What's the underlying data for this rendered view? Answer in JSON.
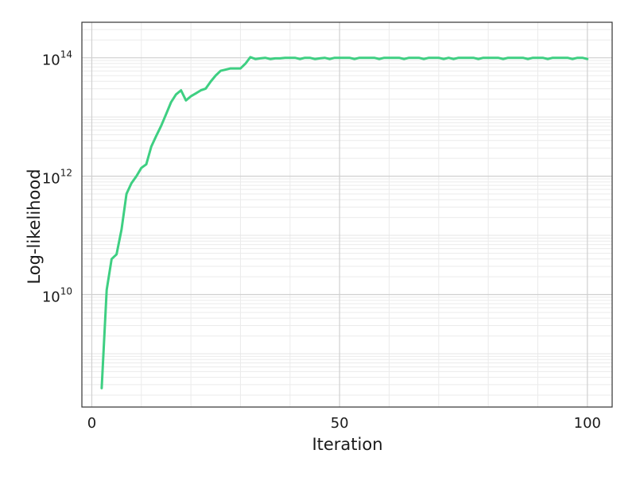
{
  "chart_data": {
    "type": "line",
    "xlabel": "Iteration",
    "ylabel": "Log-likelihood",
    "xlim": [
      -2,
      105
    ],
    "ylim_log10": [
      8.1,
      14.6
    ],
    "y_scale": "log",
    "grid": true,
    "legend": "none",
    "x_ticks": [
      {
        "value": 0,
        "label": "0"
      },
      {
        "value": 50,
        "label": "50"
      },
      {
        "value": 100,
        "label": "100"
      }
    ],
    "y_ticks": [
      {
        "exp": 10,
        "base": "10",
        "sup": "10"
      },
      {
        "exp": 12,
        "base": "10",
        "sup": "12"
      },
      {
        "exp": 14,
        "base": "10",
        "sup": "14"
      }
    ],
    "series": [
      {
        "color": "#3ecf82",
        "x": [
          2,
          3,
          4,
          5,
          6,
          7,
          8,
          9,
          10,
          11,
          12,
          13,
          14,
          15,
          16,
          17,
          18,
          19,
          20,
          21,
          22,
          23,
          24,
          25,
          26,
          27,
          28,
          29,
          30,
          31,
          32,
          33,
          34,
          35,
          36,
          37,
          38,
          39,
          40,
          41,
          42,
          43,
          44,
          45,
          46,
          47,
          48,
          49,
          50,
          51,
          52,
          53,
          54,
          55,
          56,
          57,
          58,
          59,
          60,
          61,
          62,
          63,
          64,
          65,
          66,
          67,
          68,
          69,
          70,
          71,
          72,
          73,
          74,
          75,
          76,
          77,
          78,
          79,
          80,
          81,
          82,
          83,
          84,
          85,
          86,
          87,
          88,
          89,
          90,
          91,
          92,
          93,
          94,
          95,
          96,
          97,
          98,
          99,
          100
        ],
        "log10_y": [
          8.42,
          10.08,
          10.6,
          10.68,
          11.1,
          11.7,
          11.88,
          12.0,
          12.14,
          12.2,
          12.5,
          12.68,
          12.85,
          13.05,
          13.25,
          13.38,
          13.45,
          13.28,
          13.35,
          13.4,
          13.45,
          13.48,
          13.6,
          13.7,
          13.78,
          13.8,
          13.82,
          13.82,
          13.82,
          13.9,
          14.01,
          13.98,
          13.99,
          14.0,
          13.98,
          13.99,
          13.99,
          14.0,
          14.0,
          14.0,
          13.98,
          14.0,
          14.0,
          13.98,
          13.99,
          14.0,
          13.98,
          14.0,
          14.0,
          14.0,
          14.0,
          13.98,
          14.0,
          14.0,
          14.0,
          14.0,
          13.98,
          14.0,
          14.0,
          14.0,
          14.0,
          13.98,
          14.0,
          14.0,
          14.0,
          13.98,
          14.0,
          14.0,
          14.0,
          13.98,
          14.0,
          13.98,
          14.0,
          14.0,
          14.0,
          14.0,
          13.98,
          14.0,
          14.0,
          14.0,
          14.0,
          13.98,
          14.0,
          14.0,
          14.0,
          14.0,
          13.98,
          14.0,
          14.0,
          14.0,
          13.98,
          14.0,
          14.0,
          14.0,
          14.0,
          13.98,
          14.0,
          14.0,
          13.98
        ]
      }
    ]
  }
}
